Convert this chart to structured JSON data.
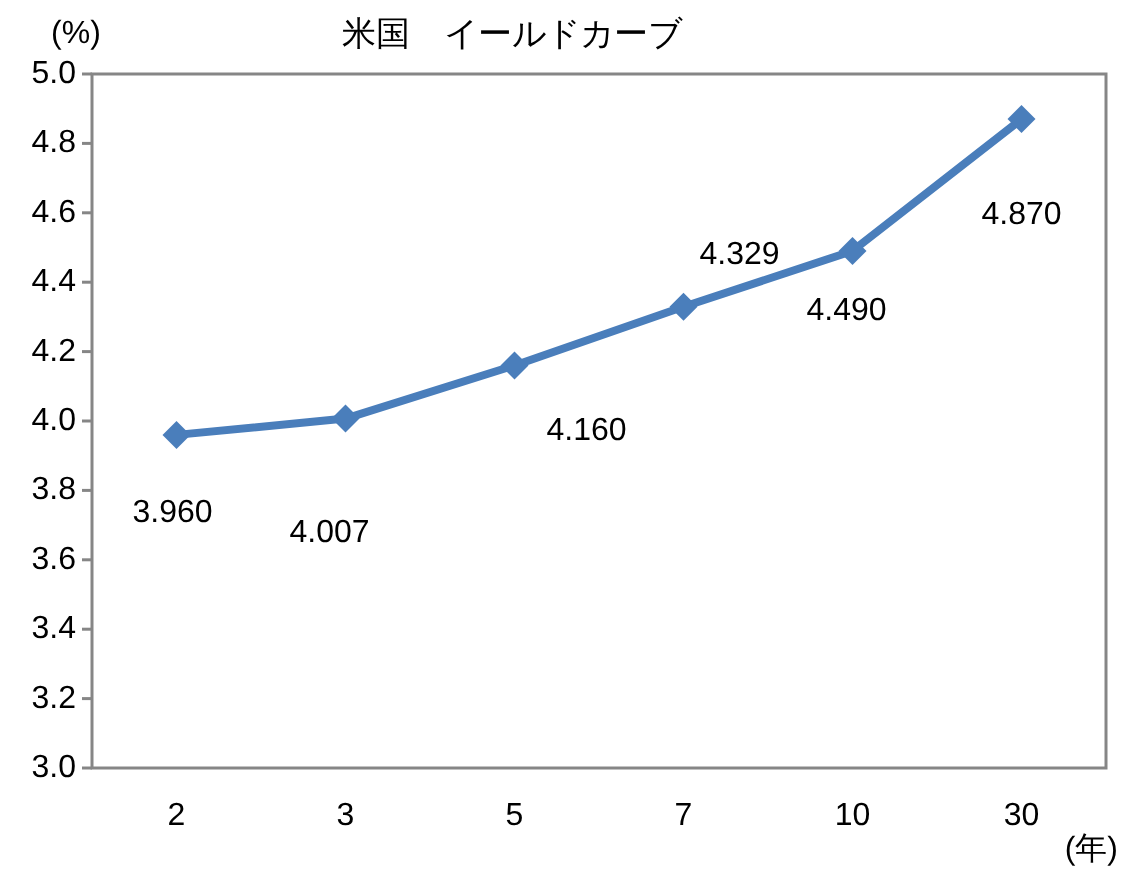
{
  "chart_data": {
    "type": "line",
    "title": "米国　イールドカーブ",
    "ylabel": "(%)",
    "xlabel": "(年)",
    "categories": [
      "2",
      "3",
      "5",
      "7",
      "10",
      "30"
    ],
    "series": [
      {
        "color": "#4a7ebb",
        "values": [
          3.96,
          4.007,
          4.16,
          4.329,
          4.49,
          4.87
        ],
        "value_labels": [
          "3.960",
          "4.007",
          "4.160",
          "4.329",
          "4.490",
          "4.870"
        ]
      }
    ],
    "ylim": [
      3.0,
      5.0
    ],
    "yticks": [
      {
        "value": 3,
        "label": "3.0"
      },
      {
        "value": 3.2,
        "label": "3.2"
      },
      {
        "value": 3.4,
        "label": "3.4"
      },
      {
        "value": 3.6,
        "label": "3.6"
      },
      {
        "value": 3.8,
        "label": "3.8"
      },
      {
        "value": 4,
        "label": "4.0"
      },
      {
        "value": 4.2,
        "label": "4.2"
      },
      {
        "value": 4.4,
        "label": "4.4"
      },
      {
        "value": 4.6,
        "label": "4.6"
      },
      {
        "value": 4.8,
        "label": "4.8"
      },
      {
        "value": 5,
        "label": "5.0"
      }
    ],
    "marker": "diamond",
    "line_style": "solid"
  }
}
